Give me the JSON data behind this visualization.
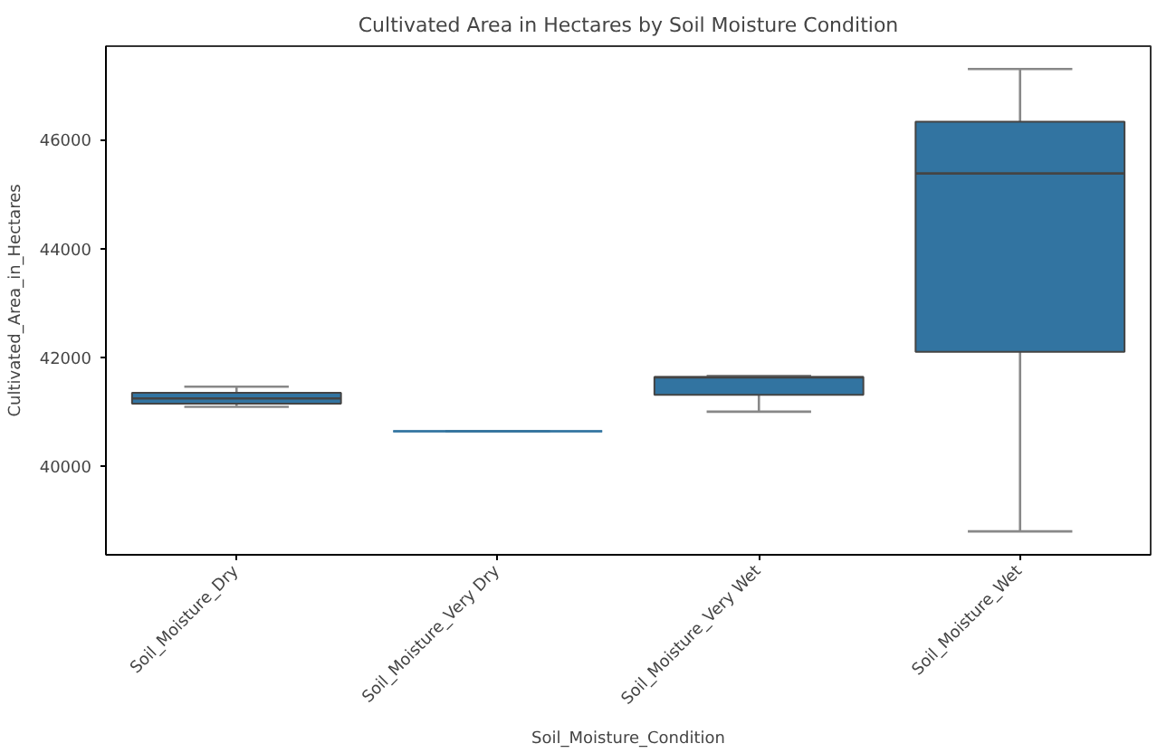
{
  "chart_data": {
    "type": "box",
    "title": "Cultivated Area in Hectares by Soil Moisture Condition",
    "xlabel": "Soil_Moisture_Condition",
    "ylabel": "Cultivated_Area_in_Hectares",
    "categories": [
      "Soil_Moisture_Dry",
      "Soil_Moisture_Very Dry",
      "Soil_Moisture_Very Wet",
      "Soil_Moisture_Wet"
    ],
    "color": "#3274a1",
    "boxes": [
      {
        "low": 41090,
        "q1": 41150,
        "median": 41245,
        "q3": 41350,
        "high": 41460
      },
      {
        "low": 40640,
        "q1": 40640,
        "median": 40640,
        "q3": 40640,
        "high": 40640
      },
      {
        "low": 41000,
        "q1": 41310,
        "median": 41630,
        "q3": 41640,
        "high": 41660
      },
      {
        "low": 38800,
        "q1": 42100,
        "median": 45380,
        "q3": 46330,
        "high": 47300
      }
    ],
    "ylim": [
      38370,
      47720
    ],
    "yticks": [
      40000,
      42000,
      44000,
      46000
    ],
    "grid": false
  }
}
